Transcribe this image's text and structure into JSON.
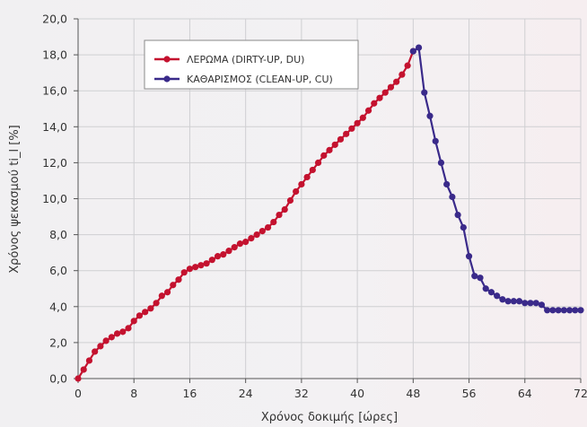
{
  "chart_data": {
    "type": "line",
    "xlabel": "Χρόνος δοκιμής [ώρες]",
    "ylabel": "Χρόνος ψεκασμού ti_l [%]",
    "xlim": [
      0,
      72
    ],
    "ylim": [
      0,
      20
    ],
    "xticks": [
      "0",
      "8",
      "16",
      "24",
      "32",
      "40",
      "48",
      "56",
      "64",
      "72"
    ],
    "yticks": [
      "0,0",
      "2,0",
      "4,0",
      "6,0",
      "8,0",
      "10,0",
      "12,0",
      "14,0",
      "16,0",
      "18,0",
      "20,0"
    ],
    "grid": true,
    "legend_position": "top-left",
    "series": [
      {
        "name": "ΛΕΡΩΜΑ (DIRTY-UP, DU)",
        "color": "#c4122f",
        "x": [
          0,
          0.8,
          1.6,
          2.4,
          3.2,
          4.0,
          4.8,
          5.6,
          6.4,
          7.2,
          8.0,
          8.8,
          9.6,
          10.4,
          11.2,
          12.0,
          12.8,
          13.6,
          14.4,
          15.2,
          16.0,
          16.8,
          17.6,
          18.4,
          19.2,
          20.0,
          20.8,
          21.6,
          22.4,
          23.2,
          24.0,
          24.8,
          25.6,
          26.4,
          27.2,
          28.0,
          28.8,
          29.6,
          30.4,
          31.2,
          32.0,
          32.8,
          33.6,
          34.4,
          35.2,
          36.0,
          36.8,
          37.6,
          38.4,
          39.2,
          40.0,
          40.8,
          41.6,
          42.4,
          43.2,
          44.0,
          44.8,
          45.6,
          46.4,
          47.2,
          48.0
        ],
        "y": [
          0.0,
          0.5,
          1.0,
          1.5,
          1.8,
          2.1,
          2.3,
          2.5,
          2.6,
          2.8,
          3.2,
          3.5,
          3.7,
          3.9,
          4.2,
          4.6,
          4.8,
          5.2,
          5.5,
          5.9,
          6.1,
          6.2,
          6.3,
          6.4,
          6.6,
          6.8,
          6.9,
          7.1,
          7.3,
          7.5,
          7.6,
          7.8,
          8.0,
          8.2,
          8.4,
          8.7,
          9.1,
          9.4,
          9.9,
          10.4,
          10.8,
          11.2,
          11.6,
          12.0,
          12.4,
          12.7,
          13.0,
          13.3,
          13.6,
          13.9,
          14.2,
          14.5,
          14.9,
          15.3,
          15.6,
          15.9,
          16.2,
          16.5,
          16.9,
          17.4,
          18.2
        ]
      },
      {
        "name": "ΚΑΘΑΡΙΣΜΟΣ (CLEAN-UP, CU)",
        "color": "#3a2a8a",
        "x": [
          48.0,
          48.8,
          49.6,
          50.4,
          51.2,
          52.0,
          52.8,
          53.6,
          54.4,
          55.2,
          56.0,
          56.8,
          57.6,
          58.4,
          59.2,
          60.0,
          60.8,
          61.6,
          62.4,
          63.2,
          64.0,
          64.8,
          65.6,
          66.4,
          67.2,
          68.0,
          68.8,
          69.6,
          70.4,
          71.2,
          72.0
        ],
        "y": [
          18.2,
          18.4,
          15.9,
          14.6,
          13.2,
          12.0,
          10.8,
          10.1,
          9.1,
          8.4,
          6.8,
          5.7,
          5.6,
          5.0,
          4.8,
          4.6,
          4.4,
          4.3,
          4.3,
          4.3,
          4.2,
          4.2,
          4.2,
          4.1,
          3.8,
          3.8,
          3.8,
          3.8,
          3.8,
          3.8,
          3.8
        ]
      }
    ]
  }
}
